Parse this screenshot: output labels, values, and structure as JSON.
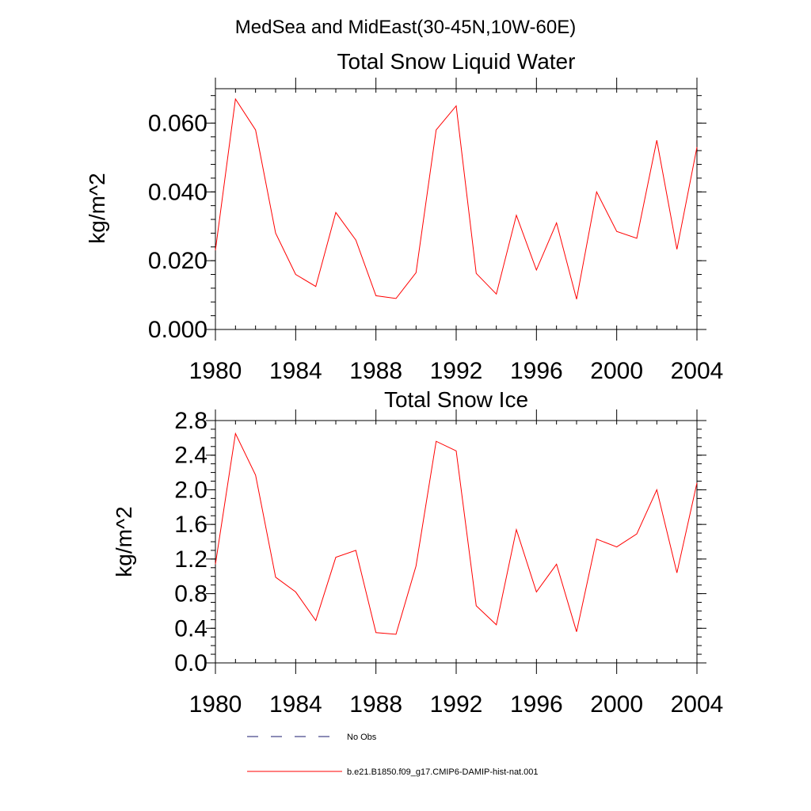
{
  "page": {
    "title": "MedSea and MidEast(30-45N,10W-60E)"
  },
  "legend": {
    "entries": [
      {
        "label": "No Obs",
        "color": "#1a1a6e",
        "style": "dashed"
      },
      {
        "label": "b.e21.B1850.f09_g17.CMIP6-DAMIP-hist-nat.001",
        "color": "#ff0000",
        "style": "solid"
      }
    ]
  },
  "chart_data": [
    {
      "type": "line",
      "title": "Total Snow Liquid Water",
      "ylabel": "kg/m^2",
      "xlim": [
        1980,
        2004
      ],
      "ylim": [
        0,
        0.07
      ],
      "x_ticks": [
        1980,
        1984,
        1988,
        1992,
        1996,
        2000,
        2004
      ],
      "y_ticks": [
        0.0,
        0.02,
        0.04,
        0.06
      ],
      "y_tick_labels": [
        "0.000",
        "0.020",
        "0.040",
        "0.060"
      ],
      "y_minor_step": 0.004,
      "x_minor_step": 1,
      "series": [
        {
          "name": "b.e21.B1850.f09_g17.CMIP6-DAMIP-hist-nat.001",
          "color": "#ff0000",
          "x": [
            1980,
            1981,
            1982,
            1983,
            1984,
            1985,
            1986,
            1987,
            1988,
            1989,
            1990,
            1991,
            1992,
            1993,
            1994,
            1995,
            1996,
            1997,
            1998,
            1999,
            2000,
            2001,
            2002,
            2003,
            2004
          ],
          "values": [
            0.023,
            0.067,
            0.058,
            0.028,
            0.016,
            0.0125,
            0.034,
            0.026,
            0.0098,
            0.009,
            0.0165,
            0.058,
            0.065,
            0.0163,
            0.0103,
            0.0332,
            0.0173,
            0.031,
            0.0088,
            0.04,
            0.0285,
            0.0265,
            0.055,
            0.0233,
            0.053
          ]
        }
      ]
    },
    {
      "type": "line",
      "title": "Total Snow Ice",
      "ylabel": "kg/m^2",
      "xlim": [
        1980,
        2004
      ],
      "ylim": [
        0,
        2.8
      ],
      "x_ticks": [
        1980,
        1984,
        1988,
        1992,
        1996,
        2000,
        2004
      ],
      "y_ticks": [
        0.0,
        0.4,
        0.8,
        1.2,
        1.6,
        2.0,
        2.4,
        2.8
      ],
      "y_tick_labels": [
        "0.0",
        "0.4",
        "0.8",
        "1.2",
        "1.6",
        "2.0",
        "2.4",
        "2.8"
      ],
      "y_minor_step": 0.1,
      "x_minor_step": 1,
      "series": [
        {
          "name": "b.e21.B1850.f09_g17.CMIP6-DAMIP-hist-nat.001",
          "color": "#ff0000",
          "x": [
            1980,
            1981,
            1982,
            1983,
            1984,
            1985,
            1986,
            1987,
            1988,
            1989,
            1990,
            1991,
            1992,
            1993,
            1994,
            1995,
            1996,
            1997,
            1998,
            1999,
            2000,
            2001,
            2002,
            2003,
            2004
          ],
          "values": [
            1.14,
            2.65,
            2.17,
            0.99,
            0.82,
            0.49,
            1.22,
            1.3,
            0.35,
            0.33,
            1.12,
            2.56,
            2.45,
            0.66,
            0.44,
            1.54,
            0.82,
            1.14,
            0.36,
            1.43,
            1.34,
            1.49,
            2.0,
            1.04,
            2.08
          ]
        }
      ]
    }
  ]
}
